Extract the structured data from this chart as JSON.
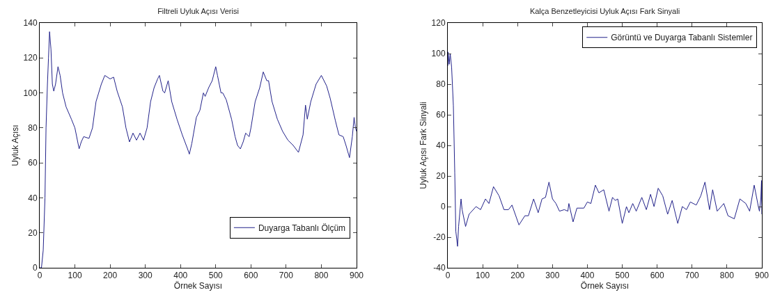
{
  "chart_data": [
    {
      "type": "line",
      "title": "Filtreli Uyluk Açısı Verisi",
      "xlabel": "Örnek Sayısı",
      "ylabel": "Uyluk Açısı",
      "xlim": [
        0,
        900
      ],
      "xticks": [
        0,
        100,
        200,
        300,
        400,
        500,
        600,
        700,
        800,
        900
      ],
      "ylim": [
        0,
        140
      ],
      "yticks": [
        0,
        20,
        40,
        60,
        80,
        100,
        120,
        140
      ],
      "grid": false,
      "legend": "bottom right",
      "marker": "none",
      "line_style": "solid",
      "series": [
        {
          "name": "Duyarga Tabanlı Ölçüm",
          "color": "#22228a",
          "x": [
            0,
            5,
            10,
            15,
            18,
            22,
            25,
            28,
            32,
            36,
            40,
            45,
            52,
            58,
            65,
            75,
            90,
            100,
            108,
            112,
            118,
            125,
            140,
            150,
            160,
            175,
            185,
            200,
            210,
            220,
            235,
            245,
            255,
            265,
            275,
            285,
            295,
            305,
            315,
            325,
            335,
            340,
            350,
            355,
            365,
            375,
            390,
            405,
            420,
            425,
            432,
            445,
            455,
            465,
            470,
            480,
            490,
            500,
            505,
            515,
            520,
            530,
            545,
            555,
            562,
            570,
            578,
            585,
            595,
            600,
            612,
            625,
            635,
            645,
            650,
            660,
            675,
            690,
            705,
            720,
            735,
            748,
            755,
            760,
            770,
            785,
            800,
            815,
            825,
            840,
            850,
            862,
            870,
            880,
            888,
            893,
            897,
            900
          ],
          "values": [
            0,
            0,
            10,
            40,
            80,
            105,
            120,
            135,
            125,
            105,
            101,
            105,
            115,
            110,
            100,
            92,
            85,
            80,
            72,
            68,
            72,
            75,
            74,
            80,
            95,
            105,
            110,
            108,
            109,
            101,
            92,
            80,
            72,
            77,
            73,
            77,
            73,
            80,
            95,
            103,
            108,
            110,
            101,
            100,
            107,
            95,
            85,
            76,
            68,
            65,
            71,
            86,
            90,
            100,
            98,
            103,
            107,
            115,
            110,
            100,
            100,
            96,
            85,
            75,
            70,
            68,
            72,
            77,
            75,
            80,
            95,
            103,
            112,
            107,
            107,
            95,
            85,
            78,
            73,
            70,
            66,
            76,
            93,
            85,
            95,
            105,
            110,
            104,
            97,
            84,
            76,
            75,
            70,
            63,
            75,
            86,
            80,
            78
          ]
        }
      ]
    },
    {
      "type": "line",
      "title": "Kalça Benzetleyicisi Uyluk Açısı Fark Sinyali",
      "xlabel": "Örnek Sayısı",
      "ylabel": "Uyluk Açısı Fark Sinyali",
      "xlim": [
        0,
        900
      ],
      "xticks": [
        0,
        100,
        200,
        300,
        400,
        500,
        600,
        700,
        800,
        900
      ],
      "ylim": [
        -40,
        120
      ],
      "yticks": [
        -40,
        -20,
        0,
        20,
        40,
        60,
        80,
        100,
        120
      ],
      "grid": false,
      "legend": "top right",
      "marker": "none",
      "line_style": "solid",
      "series": [
        {
          "name": "Görüntü ve Duyarga Tabanlı Sistemler",
          "color": "#22228a",
          "x": [
            0,
            1,
            4,
            7,
            11,
            16,
            20,
            23,
            28,
            31,
            38,
            41,
            51,
            61,
            81,
            94,
            108,
            118,
            131,
            147,
            161,
            174,
            184,
            204,
            221,
            231,
            246,
            259,
            270,
            280,
            290,
            300,
            310,
            320,
            334,
            344,
            347,
            359,
            370,
            390,
            400,
            410,
            423,
            433,
            447,
            462,
            472,
            480,
            487,
            500,
            512,
            519,
            530,
            540,
            556,
            569,
            581,
            591,
            603,
            616,
            630,
            643,
            659,
            672,
            684,
            695,
            712,
            725,
            737,
            750,
            759,
            772,
            791,
            803,
            821,
            837,
            854,
            865,
            878,
            890,
            893,
            897,
            899,
            900
          ],
          "values": [
            92,
            101,
            93,
            100,
            91,
            66,
            22,
            -16,
            -26,
            -13,
            5,
            -2,
            -13,
            -5,
            0,
            -2,
            5,
            2,
            13,
            7,
            -2,
            -2,
            1,
            -12,
            -6,
            -6,
            5,
            -4,
            5,
            6,
            16,
            5,
            2,
            -3,
            -2,
            -3,
            2,
            -10,
            -1,
            -1,
            3,
            2,
            14,
            9,
            11,
            -3,
            6,
            4,
            5,
            -11,
            0,
            -4,
            2,
            -3,
            6,
            -2,
            8,
            0,
            12,
            7,
            -5,
            4,
            -11,
            0,
            -2,
            3,
            1,
            7,
            16,
            -2,
            11,
            -3,
            2,
            -6,
            -8,
            5,
            2,
            -3,
            14,
            0,
            -3,
            5,
            17,
            -5
          ]
        }
      ]
    }
  ]
}
